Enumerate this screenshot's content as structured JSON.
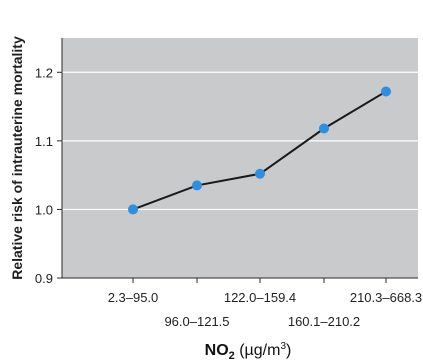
{
  "colors": {
    "page_background": "#ffffff",
    "plot_background": "#c9cacc",
    "gridline": "#ffffff",
    "axis": "#2a2a2a",
    "line": "#1a1a1a",
    "marker": "#2d8fe0"
  },
  "chart_data": {
    "type": "line",
    "xlabel": {
      "main": "NO",
      "subscript": "2",
      "units_open": " (µg/m",
      "units_superscript": "3",
      "units_close": ")"
    },
    "ylabel": "Relative risk of intrauterine mortality",
    "categories": [
      "2.3–95.0",
      "96.0–121.5",
      "122.0–159.4",
      "160.1–210.2",
      "210.3–668.3"
    ],
    "category_label_rows": [
      0,
      1,
      0,
      1,
      0
    ],
    "values": [
      1.0,
      1.035,
      1.052,
      1.118,
      1.172
    ],
    "ylim": [
      0.9,
      1.25
    ],
    "yticks": [
      0.9,
      1.0,
      1.1,
      1.2
    ],
    "ytick_labels": [
      "0.9",
      "1.0",
      "1.1",
      "1.2"
    ],
    "grid": true
  }
}
